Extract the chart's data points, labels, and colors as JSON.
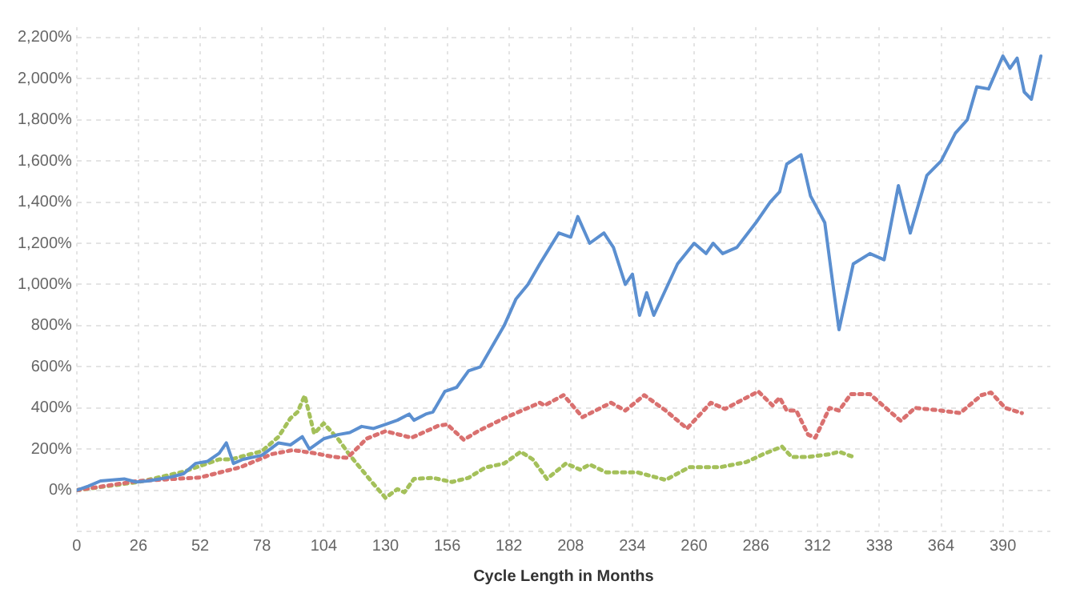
{
  "chart_data": {
    "type": "line",
    "xlabel": "Cycle Length in Months",
    "xlim": [
      0,
      410
    ],
    "xticks": [
      0,
      26,
      52,
      78,
      104,
      130,
      156,
      182,
      208,
      234,
      260,
      286,
      312,
      338,
      364,
      390
    ],
    "ylim": [
      -200,
      2250
    ],
    "yticks": [
      {
        "value": -200,
        "label": null
      },
      {
        "value": 0,
        "label": "0%"
      },
      {
        "value": 200,
        "label": "200%"
      },
      {
        "value": 400,
        "label": "400%"
      },
      {
        "value": 600,
        "label": "600%"
      },
      {
        "value": 800,
        "label": "800%"
      },
      {
        "value": 1000,
        "label": "1,000%"
      },
      {
        "value": 1200,
        "label": "1,200%"
      },
      {
        "value": 1400,
        "label": "1,400%"
      },
      {
        "value": 1600,
        "label": "1,600%"
      },
      {
        "value": 1800,
        "label": "1,800%"
      },
      {
        "value": 2000,
        "label": "2,000%"
      },
      {
        "value": 2200,
        "label": "2,200%"
      }
    ],
    "grid": true,
    "marker": "none",
    "series": [
      {
        "color": "#5b8fd0",
        "line_style": "solid",
        "x": [
          0,
          5,
          10,
          15,
          20,
          25,
          30,
          35,
          40,
          45,
          50,
          55,
          60,
          63,
          66,
          70,
          78,
          85,
          90,
          95,
          98,
          104,
          110,
          115,
          120,
          125,
          130,
          135,
          140,
          142,
          147,
          150,
          155,
          160,
          165,
          170,
          175,
          180,
          185,
          190,
          195,
          203,
          208,
          211,
          216,
          222,
          226,
          231,
          234,
          237,
          240,
          243,
          247,
          253,
          260,
          265,
          268,
          272,
          278,
          286,
          292,
          296,
          299,
          305,
          309,
          315,
          319,
          321,
          327,
          334,
          340,
          346,
          351,
          358,
          364,
          370,
          375,
          379,
          384,
          390,
          393,
          396,
          399,
          402,
          406
        ],
        "values": [
          0,
          20,
          45,
          50,
          55,
          40,
          45,
          55,
          65,
          80,
          130,
          140,
          180,
          230,
          130,
          150,
          170,
          230,
          220,
          260,
          200,
          250,
          270,
          280,
          310,
          300,
          320,
          340,
          370,
          340,
          370,
          380,
          480,
          500,
          580,
          600,
          700,
          800,
          930,
          1000,
          1100,
          1250,
          1230,
          1330,
          1200,
          1250,
          1180,
          1000,
          1050,
          850,
          960,
          850,
          950,
          1100,
          1200,
          1150,
          1200,
          1150,
          1180,
          1300,
          1400,
          1450,
          1585,
          1630,
          1430,
          1300,
          950,
          780,
          1100,
          1150,
          1120,
          1480,
          1250,
          1530,
          1600,
          1735,
          1800,
          1960,
          1950,
          2110,
          2050,
          2100,
          1935,
          1900,
          2110
        ]
      },
      {
        "color": "#d9706f",
        "line_style": "dotted",
        "x": [
          0,
          26,
          52,
          69,
          82,
          91,
          100,
          108,
          114,
          122,
          130,
          141,
          152,
          156,
          163,
          169,
          180,
          195,
          197,
          205,
          213,
          225,
          231,
          239,
          248,
          257,
          267,
          273,
          287,
          293,
          296,
          299,
          303,
          308,
          311,
          317,
          321,
          326,
          334,
          347,
          353,
          364,
          372,
          381,
          385,
          391,
          398
        ],
        "values": [
          0,
          45,
          62,
          112,
          175,
          195,
          180,
          162,
          157,
          250,
          287,
          255,
          312,
          320,
          245,
          287,
          350,
          425,
          412,
          462,
          355,
          425,
          387,
          462,
          387,
          300,
          425,
          395,
          480,
          412,
          450,
          387,
          387,
          270,
          255,
          400,
          387,
          467,
          467,
          337,
          400,
          387,
          375,
          462,
          475,
          400,
          375
        ]
      },
      {
        "color": "#a4c05a",
        "line_style": "dotted",
        "x": [
          0,
          26,
          45,
          55,
          60,
          65,
          78,
          85,
          90,
          93,
          96,
          100,
          104,
          110,
          115,
          120,
          125,
          130,
          135,
          138,
          142,
          150,
          158,
          165,
          172,
          180,
          187,
          192,
          198,
          206,
          212,
          216,
          223,
          236,
          248,
          258,
          271,
          282,
          289,
          297,
          301,
          308,
          317,
          321,
          327
        ],
        "values": [
          0,
          40,
          90,
          130,
          150,
          150,
          190,
          260,
          350,
          380,
          460,
          275,
          325,
          250,
          170,
          100,
          30,
          -37,
          5,
          -10,
          55,
          60,
          40,
          60,
          110,
          130,
          187,
          150,
          55,
          130,
          100,
          125,
          87,
          87,
          50,
          112,
          112,
          137,
          175,
          212,
          162,
          162,
          175,
          187,
          162
        ]
      }
    ]
  }
}
